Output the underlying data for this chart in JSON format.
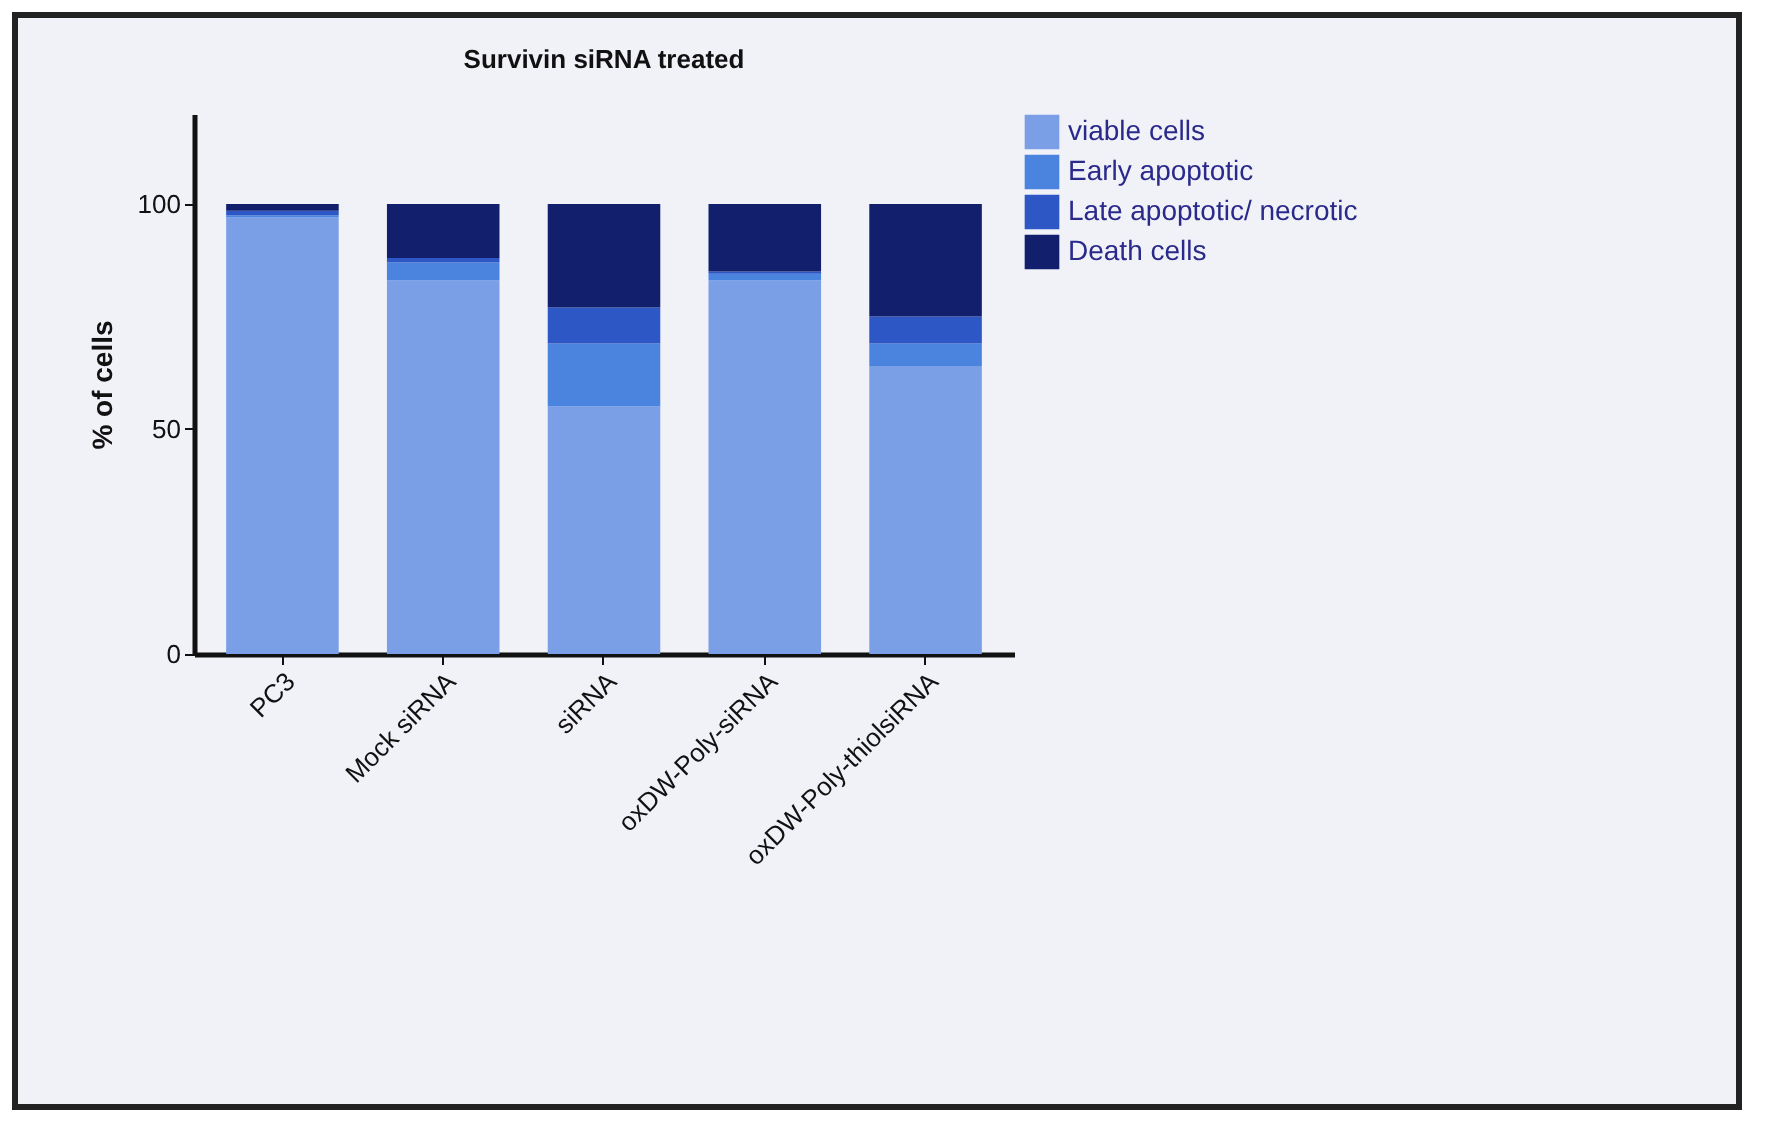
{
  "chart_data": {
    "type": "bar",
    "title": "Survivin siRNA treated",
    "ylabel": "% of cells",
    "categories": [
      "PC3",
      "Mock siRNA",
      "siRNA",
      "oxDW-Poly-siRNA",
      "oxDW-Poly-thiolsiRNA"
    ],
    "series": [
      {
        "name": "viable cells",
        "color": "#7b9fe6",
        "values": [
          97,
          83,
          55,
          83,
          64
        ]
      },
      {
        "name": "Early apoptotic",
        "color": "#4a84de",
        "values": [
          0.5,
          4,
          14,
          1.5,
          5
        ]
      },
      {
        "name": "Late apoptotic/ necrotic",
        "color": "#2d57c4",
        "values": [
          1,
          1,
          8,
          0.5,
          6
        ]
      },
      {
        "name": "Death cells",
        "color": "#111f6c",
        "values": [
          1.5,
          12,
          23,
          15,
          25
        ]
      }
    ],
    "stacked": true,
    "ylim": [
      0,
      120
    ],
    "yticks": [
      0,
      50,
      100
    ],
    "grid": false,
    "legend": "top right"
  }
}
